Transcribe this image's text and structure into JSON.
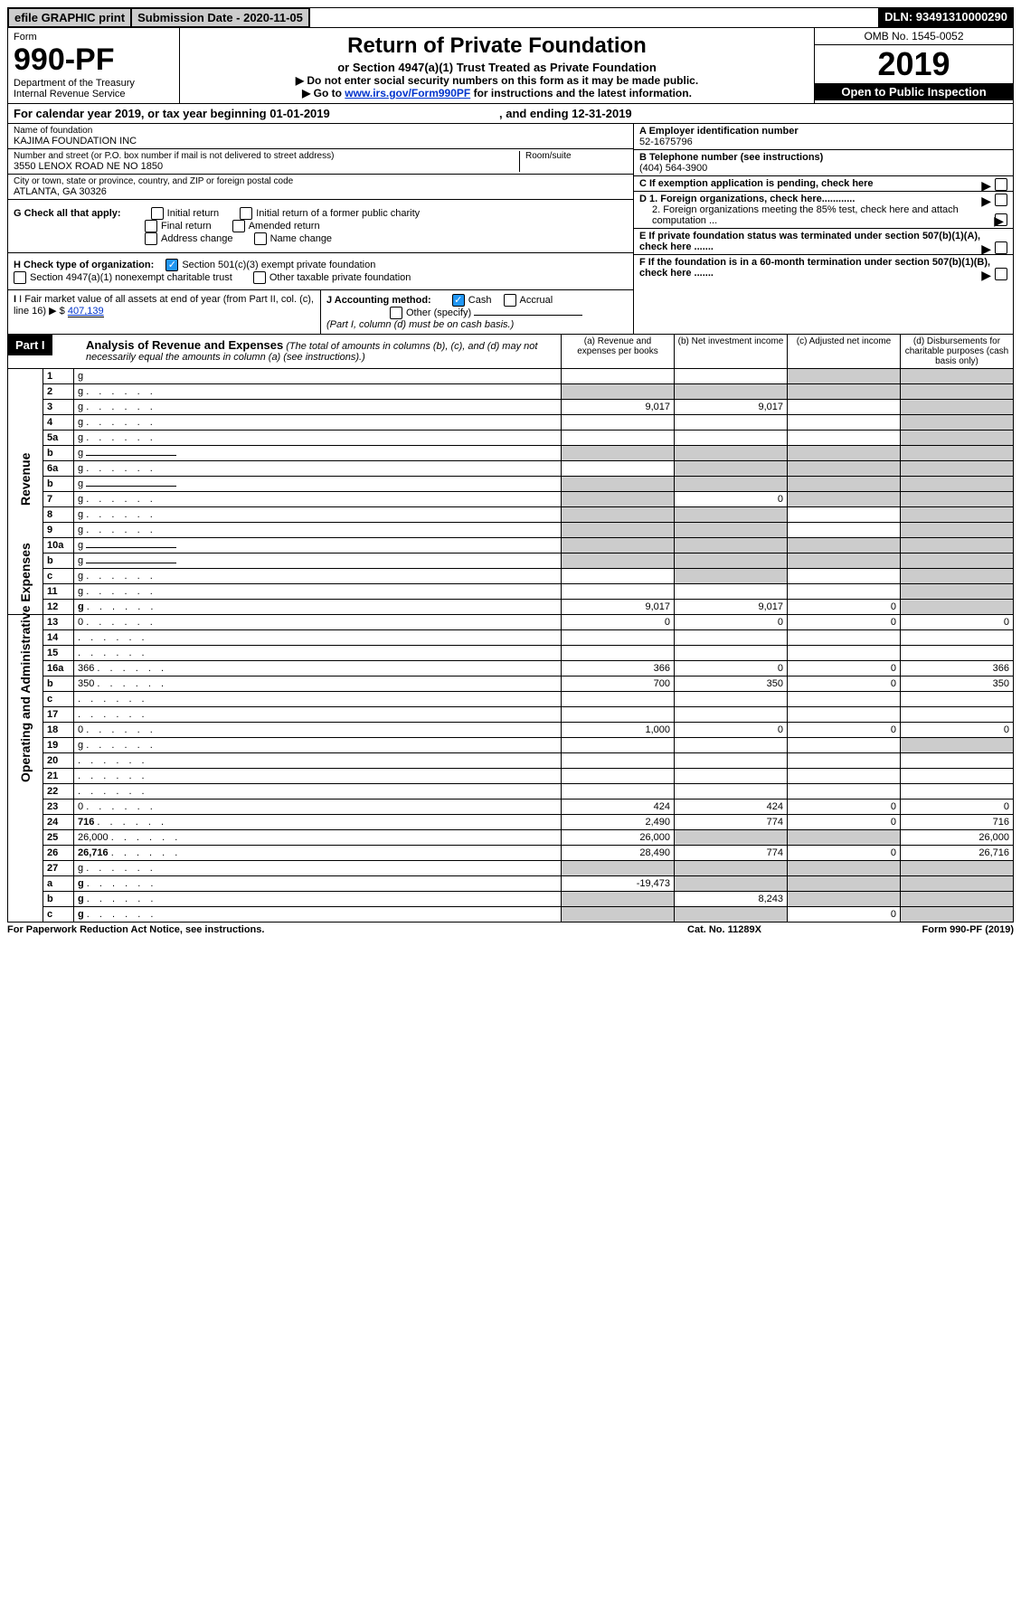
{
  "topbar": {
    "efile": "efile GRAPHIC print",
    "submission": "Submission Date - 2020-11-05",
    "dln": "DLN: 93491310000290"
  },
  "formhead": {
    "form_label": "Form",
    "form_number": "990-PF",
    "dept": "Department of the Treasury",
    "irs": "Internal Revenue Service",
    "title": "Return of Private Foundation",
    "subtitle": "or Section 4947(a)(1) Trust Treated as Private Foundation",
    "note1": "▶ Do not enter social security numbers on this form as it may be made public.",
    "note2_pre": "▶ Go to ",
    "note2_link": "www.irs.gov/Form990PF",
    "note2_post": " for instructions and the latest information.",
    "omb": "OMB No. 1545-0052",
    "year": "2019",
    "open": "Open to Public Inspection"
  },
  "calyear": {
    "pre": "For calendar year 2019, or tax year beginning ",
    "begin": "01-01-2019",
    "mid": " , and ending ",
    "end": "12-31-2019"
  },
  "id": {
    "name_lbl": "Name of foundation",
    "name": "KAJIMA FOUNDATION INC",
    "addr_lbl": "Number and street (or P.O. box number if mail is not delivered to street address)",
    "addr": "3550 LENOX ROAD NE NO 1850",
    "room_lbl": "Room/suite",
    "city_lbl": "City or town, state or province, country, and ZIP or foreign postal code",
    "city": "ATLANTA, GA  30326",
    "ein_lbl": "A Employer identification number",
    "ein": "52-1675796",
    "tel_lbl": "B Telephone number (see instructions)",
    "tel": "(404) 564-3900",
    "c": "C If exemption application is pending, check here",
    "d1": "D 1. Foreign organizations, check here............",
    "d2": "2. Foreign organizations meeting the 85% test, check here and attach computation ...",
    "e": "E If private foundation status was terminated under section 507(b)(1)(A), check here .......",
    "f": "F If the foundation is in a 60-month termination under section 507(b)(1)(B), check here .......",
    "g_lbl": "G Check all that apply:",
    "g_opts": [
      "Initial return",
      "Initial return of a former public charity",
      "Final return",
      "Amended return",
      "Address change",
      "Name change"
    ],
    "h_lbl": "H Check type of organization:",
    "h1": "Section 501(c)(3) exempt private foundation",
    "h2": "Section 4947(a)(1) nonexempt charitable trust",
    "h3": "Other taxable private foundation",
    "i_lbl": "I Fair market value of all assets at end of year (from Part II, col. (c), line 16) ▶ $",
    "i_val": "407,139",
    "j_lbl": "J Accounting method:",
    "j_cash": "Cash",
    "j_accrual": "Accrual",
    "j_other": "Other (specify)",
    "j_note": "(Part I, column (d) must be on cash basis.)"
  },
  "part1": {
    "label": "Part I",
    "title": "Analysis of Revenue and Expenses",
    "title_note": " (The total of amounts in columns (b), (c), and (d) may not necessarily equal the amounts in column (a) (see instructions).)",
    "cols": {
      "a": "(a)   Revenue and expenses per books",
      "b": "(b)   Net investment income",
      "c": "(c)   Adjusted net income",
      "d": "(d)   Disbursements for charitable purposes (cash basis only)"
    }
  },
  "side": {
    "revenue": "Revenue",
    "expenses": "Operating and Administrative Expenses"
  },
  "rows": [
    {
      "n": "1",
      "d": "g",
      "a": "",
      "b": "",
      "c": "g"
    },
    {
      "n": "2",
      "d": "g",
      "a": "g",
      "b": "g",
      "c": "g",
      "bold_not": true
    },
    {
      "n": "3",
      "d": "g",
      "a": "9,017",
      "b": "9,017",
      "c": ""
    },
    {
      "n": "4",
      "d": "g",
      "a": "",
      "b": "",
      "c": ""
    },
    {
      "n": "5a",
      "d": "g",
      "a": "",
      "b": "",
      "c": ""
    },
    {
      "n": "b",
      "d": "g",
      "a": "g",
      "b": "g",
      "c": "g",
      "inline": true
    },
    {
      "n": "6a",
      "d": "g",
      "a": "",
      "b": "g",
      "c": "g"
    },
    {
      "n": "b",
      "d": "g",
      "a": "g",
      "b": "g",
      "c": "g",
      "inline": true
    },
    {
      "n": "7",
      "d": "g",
      "a": "g",
      "b": "0",
      "c": "g"
    },
    {
      "n": "8",
      "d": "g",
      "a": "g",
      "b": "g",
      "c": ""
    },
    {
      "n": "9",
      "d": "g",
      "a": "g",
      "b": "g",
      "c": ""
    },
    {
      "n": "10a",
      "d": "g",
      "a": "g",
      "b": "g",
      "c": "g",
      "inline": true
    },
    {
      "n": "b",
      "d": "g",
      "a": "g",
      "b": "g",
      "c": "g",
      "inline": true
    },
    {
      "n": "c",
      "d": "g",
      "a": "",
      "b": "g",
      "c": ""
    },
    {
      "n": "11",
      "d": "g",
      "a": "",
      "b": "",
      "c": ""
    },
    {
      "n": "12",
      "d": "g",
      "a": "9,017",
      "b": "9,017",
      "c": "0",
      "bold": true
    },
    {
      "n": "13",
      "d": "0",
      "a": "0",
      "b": "0",
      "c": "0"
    },
    {
      "n": "14",
      "d": "",
      "a": "",
      "b": "",
      "c": ""
    },
    {
      "n": "15",
      "d": "",
      "a": "",
      "b": "",
      "c": ""
    },
    {
      "n": "16a",
      "d": "366",
      "a": "366",
      "b": "0",
      "c": "0"
    },
    {
      "n": "b",
      "d": "350",
      "a": "700",
      "b": "350",
      "c": "0"
    },
    {
      "n": "c",
      "d": "",
      "a": "",
      "b": "",
      "c": ""
    },
    {
      "n": "17",
      "d": "",
      "a": "",
      "b": "",
      "c": ""
    },
    {
      "n": "18",
      "d": "0",
      "a": "1,000",
      "b": "0",
      "c": "0"
    },
    {
      "n": "19",
      "d": "g",
      "a": "",
      "b": "",
      "c": ""
    },
    {
      "n": "20",
      "d": "",
      "a": "",
      "b": "",
      "c": ""
    },
    {
      "n": "21",
      "d": "",
      "a": "",
      "b": "",
      "c": ""
    },
    {
      "n": "22",
      "d": "",
      "a": "",
      "b": "",
      "c": ""
    },
    {
      "n": "23",
      "d": "0",
      "a": "424",
      "b": "424",
      "c": "0"
    },
    {
      "n": "24",
      "d": "716",
      "a": "2,490",
      "b": "774",
      "c": "0",
      "bold": true
    },
    {
      "n": "25",
      "d": "26,000",
      "a": "26,000",
      "b": "g",
      "c": "g"
    },
    {
      "n": "26",
      "d": "26,716",
      "a": "28,490",
      "b": "774",
      "c": "0",
      "bold": true
    },
    {
      "n": "27",
      "d": "g",
      "a": "g",
      "b": "g",
      "c": "g"
    },
    {
      "n": "a",
      "d": "g",
      "a": "-19,473",
      "b": "g",
      "c": "g",
      "bold": true
    },
    {
      "n": "b",
      "d": "g",
      "a": "g",
      "b": "8,243",
      "c": "g",
      "bold": true
    },
    {
      "n": "c",
      "d": "g",
      "a": "g",
      "b": "g",
      "c": "0",
      "bold": true
    }
  ],
  "footer": {
    "left": "For Paperwork Reduction Act Notice, see instructions.",
    "mid": "Cat. No. 11289X",
    "right": "Form 990-PF (2019)"
  },
  "style": {
    "grey": "#cccccc",
    "black": "#000000",
    "link": "#0033cc",
    "check_blue": "#2196f3"
  }
}
